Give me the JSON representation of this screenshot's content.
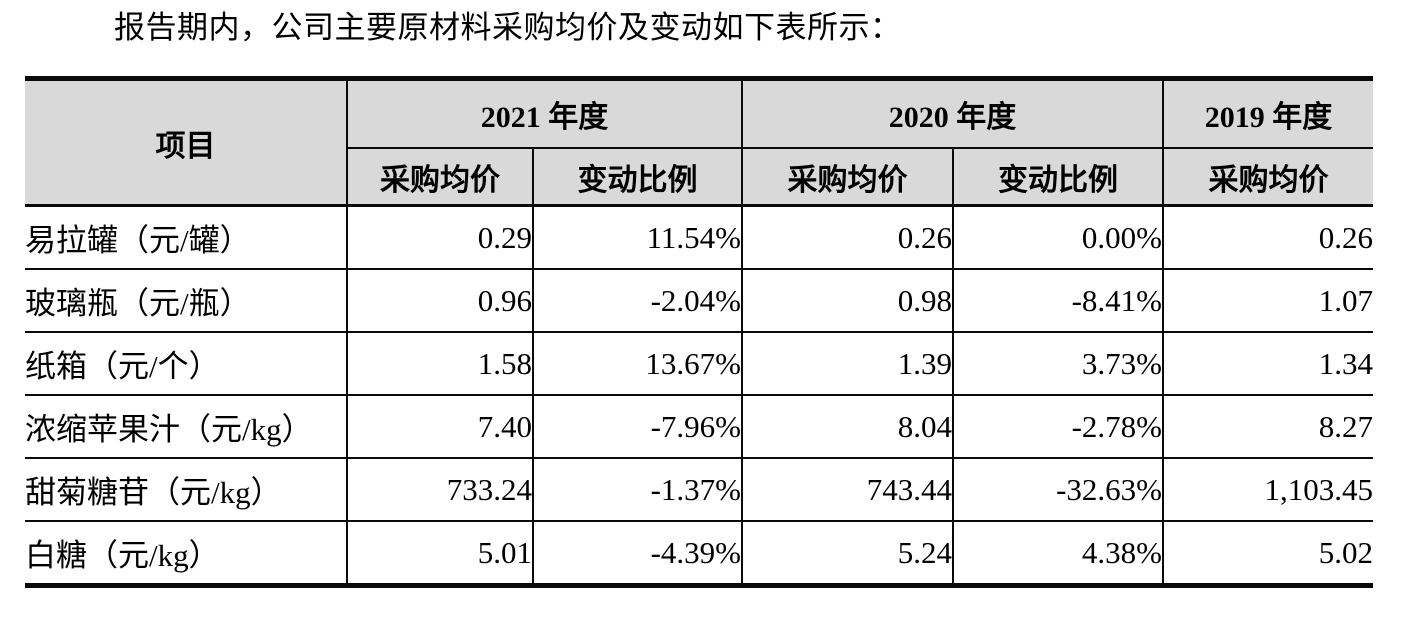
{
  "intro_text": "报告期内，公司主要原材料采购均价及变动如下表所示：",
  "table": {
    "item_header": "项目",
    "year_groups": [
      {
        "label": "2021 年度",
        "sub": [
          "采购均价",
          "变动比例"
        ]
      },
      {
        "label": "2020 年度",
        "sub": [
          "采购均价",
          "变动比例"
        ]
      },
      {
        "label": "2019 年度",
        "sub": [
          "采购均价"
        ]
      }
    ],
    "rows": [
      {
        "item": "易拉罐（元/罐）",
        "p2021": "0.29",
        "c2021": "11.54%",
        "p2020": "0.26",
        "c2020": "0.00%",
        "p2019": "0.26"
      },
      {
        "item": "玻璃瓶（元/瓶）",
        "p2021": "0.96",
        "c2021": "-2.04%",
        "p2020": "0.98",
        "c2020": "-8.41%",
        "p2019": "1.07"
      },
      {
        "item": "纸箱（元/个）",
        "p2021": "1.58",
        "c2021": "13.67%",
        "p2020": "1.39",
        "c2020": "3.73%",
        "p2019": "1.34"
      },
      {
        "item": "浓缩苹果汁（元/kg）",
        "p2021": "7.40",
        "c2021": "-7.96%",
        "p2020": "8.04",
        "c2020": "-2.78%",
        "p2019": "8.27"
      },
      {
        "item": "甜菊糖苷（元/kg）",
        "p2021": "733.24",
        "c2021": "-1.37%",
        "p2020": "743.44",
        "c2020": "-32.63%",
        "p2019": "1,103.45"
      },
      {
        "item": "白糖（元/kg）",
        "p2021": "5.01",
        "c2021": "-4.39%",
        "p2020": "5.24",
        "c2020": "4.38%",
        "p2019": "5.02"
      }
    ],
    "colors": {
      "header_background": "#d9d9d9",
      "border": "#0a0a0a",
      "text": "#000000",
      "page_background": "#ffffff"
    }
  }
}
